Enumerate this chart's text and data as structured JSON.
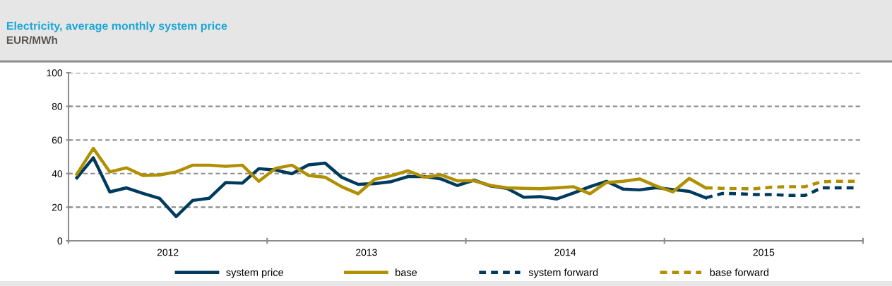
{
  "chart_data": {
    "type": "line",
    "title": "Electricity, average monthly system price",
    "subtitle": "EUR/MWh",
    "ylim": [
      0,
      100
    ],
    "yticks": [
      0,
      20,
      40,
      60,
      80,
      100
    ],
    "xlim": [
      2012,
      2016
    ],
    "xticks": [
      {
        "value": 2012,
        "label": null
      },
      {
        "value": 2012.5,
        "label": "2012"
      },
      {
        "value": 2013,
        "label": null
      },
      {
        "value": 2013.5,
        "label": "2013"
      },
      {
        "value": 2014,
        "label": null
      },
      {
        "value": 2014.5,
        "label": "2014"
      },
      {
        "value": 2015,
        "label": null
      },
      {
        "value": 2015.5,
        "label": "2015"
      },
      {
        "value": 2016,
        "label": null
      }
    ],
    "grid": "y",
    "legend": "bottom",
    "marker": "none",
    "x": [
      2012.042,
      2012.125,
      2012.208,
      2012.292,
      2012.375,
      2012.458,
      2012.542,
      2012.625,
      2012.708,
      2012.792,
      2012.875,
      2012.958,
      2013.042,
      2013.125,
      2013.208,
      2013.292,
      2013.375,
      2013.458,
      2013.542,
      2013.625,
      2013.708,
      2013.792,
      2013.875,
      2013.958,
      2014.042,
      2014.125,
      2014.208,
      2014.292,
      2014.375,
      2014.458,
      2014.542,
      2014.625,
      2014.708,
      2014.792,
      2014.875,
      2014.958,
      2015.042,
      2015.125,
      2015.208
    ],
    "series": [
      {
        "name": "system price",
        "color": "#003a5d",
        "line_style": "solid",
        "values": [
          37.5,
          49.4,
          29.1,
          31.5,
          28.2,
          25.3,
          14.4,
          24.0,
          25.3,
          34.7,
          34.3,
          42.9,
          42.1,
          39.9,
          45.2,
          46.2,
          37.8,
          33.6,
          34.0,
          35.2,
          38.2,
          38.2,
          36.8,
          32.9,
          36.1,
          32.6,
          31.2,
          25.9,
          26.3,
          24.9,
          28.4,
          32.2,
          35.4,
          30.8,
          30.3,
          31.6,
          30.5,
          29.4,
          25.6
        ]
      },
      {
        "name": "base",
        "color": "#b08f00",
        "line_style": "solid",
        "values": [
          39.6,
          55.0,
          41.0,
          43.4,
          38.9,
          39.2,
          41.0,
          45.0,
          45.0,
          44.3,
          45.0,
          35.4,
          43.1,
          45.0,
          38.9,
          37.8,
          32.2,
          28.0,
          36.6,
          38.7,
          41.7,
          37.8,
          39.2,
          35.7,
          35.7,
          32.9,
          31.5,
          31.2,
          31.0,
          31.5,
          32.2,
          28.0,
          34.7,
          35.4,
          36.8,
          32.6,
          29.1,
          37.1,
          31.5
        ]
      },
      {
        "name": "system forward",
        "color": "#003a5d",
        "line_style": "dashed",
        "x": [
          2015.208,
          2015.292,
          2015.375,
          2015.458,
          2015.542,
          2015.625,
          2015.708,
          2015.792,
          2015.875,
          2015.958
        ],
        "values": [
          25.6,
          28.2,
          28.0,
          27.5,
          27.5,
          27.0,
          27.0,
          31.5,
          31.5,
          31.5
        ]
      },
      {
        "name": "base forward",
        "color": "#b08f00",
        "line_style": "dashed",
        "x": [
          2015.208,
          2015.292,
          2015.375,
          2015.458,
          2015.542,
          2015.625,
          2015.708,
          2015.792,
          2015.875,
          2015.958
        ],
        "values": [
          31.5,
          31.2,
          31.0,
          31.0,
          31.9,
          32.2,
          32.2,
          35.2,
          35.4,
          35.4
        ]
      }
    ]
  }
}
